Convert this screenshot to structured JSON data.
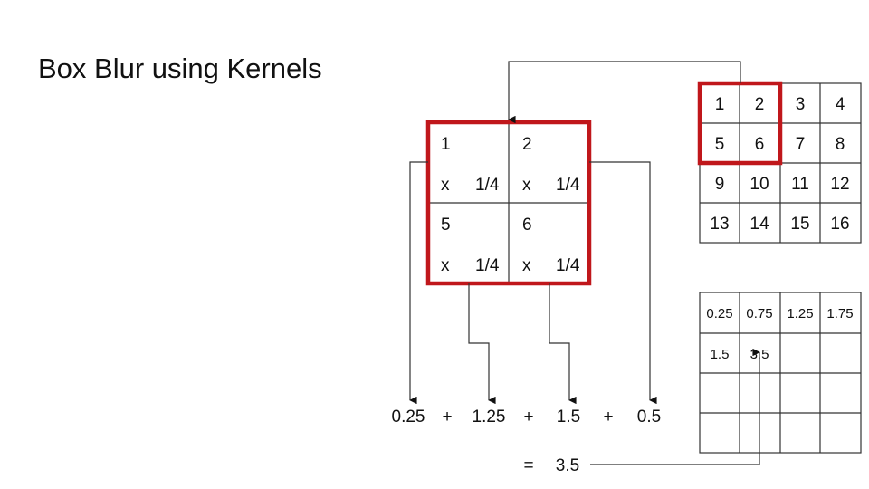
{
  "title": "Box Blur using Kernels",
  "kernel": {
    "cells": [
      {
        "value": "1",
        "multiplier": "x",
        "factor": "1/4"
      },
      {
        "value": "2",
        "multiplier": "x",
        "factor": "1/4"
      },
      {
        "value": "5",
        "multiplier": "x",
        "factor": "1/4"
      },
      {
        "value": "6",
        "multiplier": "x",
        "factor": "1/4"
      }
    ]
  },
  "input_grid": {
    "rows": [
      [
        "1",
        "2",
        "3",
        "4"
      ],
      [
        "5",
        "6",
        "7",
        "8"
      ],
      [
        "9",
        "10",
        "11",
        "12"
      ],
      [
        "13",
        "14",
        "15",
        "16"
      ]
    ]
  },
  "output_grid": {
    "rows": [
      [
        "0.25",
        "0.75",
        "1.25",
        "1.75"
      ],
      [
        "1.5",
        "3.5",
        "",
        ""
      ],
      [
        "",
        "",
        "",
        ""
      ],
      [
        "",
        "",
        "",
        ""
      ]
    ]
  },
  "sum": {
    "terms": [
      "0.25",
      "1.25",
      "1.5",
      "0.5"
    ],
    "plus": "+",
    "equals": "=",
    "result": "3.5"
  },
  "colors": {
    "highlight": "#c0171b",
    "line": "#333333"
  }
}
